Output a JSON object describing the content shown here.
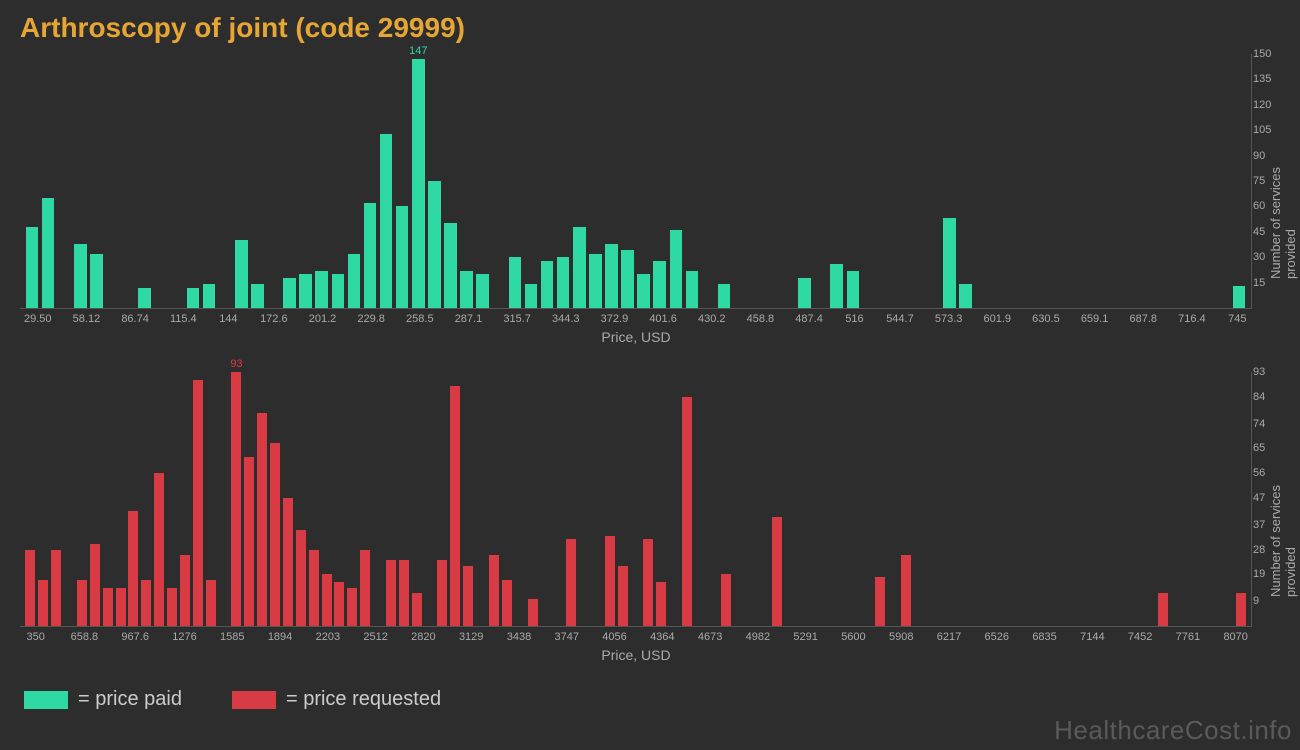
{
  "title": "Arthroscopy of joint (code 29999)",
  "watermark": "HealthcareCost.info",
  "colors": {
    "background": "#2d2d2d",
    "title": "#e6a636",
    "paid": "#2fd9a4",
    "requested": "#d93b44",
    "axis_text": "#aaaaaa",
    "axis_line": "#555555",
    "watermark": "#5a5a5a"
  },
  "legend": {
    "paid_label": "= price paid",
    "requested_label": "= price requested"
  },
  "chart_paid": {
    "type": "bar",
    "peak_label": "147",
    "xlabel": "Price, USD",
    "ylabel": "Number of services provided",
    "ymax": 150,
    "yticks": [
      15,
      30,
      45,
      60,
      75,
      90,
      105,
      120,
      135,
      150
    ],
    "xticks": [
      "29.50",
      "",
      "58.12",
      "",
      "86.74",
      "",
      "115.4",
      "",
      "144",
      "",
      "172.6",
      "",
      "201.2",
      "",
      "229.8",
      "",
      "258.5",
      "",
      "287.1",
      "",
      "315.7",
      "",
      "344.3",
      "",
      "372.9",
      "",
      "401.6",
      "",
      "430.2",
      "",
      "458.8",
      "",
      "487.4",
      "",
      "516",
      "",
      "544.7",
      "",
      "573.3",
      "",
      "601.9",
      "",
      "630.5",
      "",
      "659.1",
      "",
      "687.8",
      "",
      "716.4",
      "",
      "745"
    ],
    "values": [
      48,
      65,
      0,
      38,
      32,
      0,
      0,
      12,
      0,
      0,
      12,
      14,
      0,
      40,
      14,
      0,
      18,
      20,
      22,
      20,
      32,
      62,
      103,
      60,
      147,
      75,
      50,
      22,
      20,
      0,
      30,
      14,
      28,
      30,
      48,
      32,
      38,
      34,
      20,
      28,
      46,
      22,
      0,
      14,
      0,
      0,
      0,
      0,
      18,
      0,
      26,
      22,
      0,
      0,
      0,
      0,
      0,
      53,
      14,
      0,
      0,
      0,
      0,
      0,
      0,
      0,
      0,
      0,
      0,
      0,
      0,
      0,
      0,
      0,
      0,
      13
    ]
  },
  "chart_requested": {
    "type": "bar",
    "peak_label": "93",
    "xlabel": "Price, USD",
    "ylabel": "Number of services provided",
    "ymax": 93,
    "yticks": [
      9,
      19,
      28,
      37,
      47,
      56,
      65,
      74,
      84,
      93
    ],
    "xticks": [
      "350",
      "",
      "658.8",
      "",
      "967.6",
      "",
      "1276",
      "",
      "1585",
      "",
      "1894",
      "",
      "2203",
      "",
      "2512",
      "",
      "2820",
      "",
      "3129",
      "",
      "3438",
      "",
      "3747",
      "",
      "4056",
      "",
      "4364",
      "",
      "4673",
      "",
      "4982",
      "",
      "5291",
      "",
      "5600",
      "",
      "5908",
      "",
      "6217",
      "",
      "6526",
      "",
      "6835",
      "",
      "7144",
      "",
      "7452",
      "",
      "7761",
      "",
      "8070"
    ],
    "values": [
      28,
      17,
      28,
      0,
      17,
      30,
      14,
      14,
      42,
      17,
      56,
      14,
      26,
      90,
      17,
      0,
      93,
      62,
      78,
      67,
      47,
      35,
      28,
      19,
      16,
      14,
      28,
      0,
      24,
      24,
      12,
      0,
      24,
      88,
      22,
      0,
      26,
      17,
      0,
      10,
      0,
      0,
      32,
      0,
      0,
      33,
      22,
      0,
      32,
      16,
      0,
      84,
      0,
      0,
      19,
      0,
      0,
      0,
      40,
      0,
      0,
      0,
      0,
      0,
      0,
      0,
      18,
      0,
      26,
      0,
      0,
      0,
      0,
      0,
      0,
      0,
      0,
      0,
      0,
      0,
      0,
      0,
      0,
      0,
      0,
      0,
      0,
      0,
      12,
      0,
      0,
      0,
      0,
      0,
      12
    ]
  }
}
